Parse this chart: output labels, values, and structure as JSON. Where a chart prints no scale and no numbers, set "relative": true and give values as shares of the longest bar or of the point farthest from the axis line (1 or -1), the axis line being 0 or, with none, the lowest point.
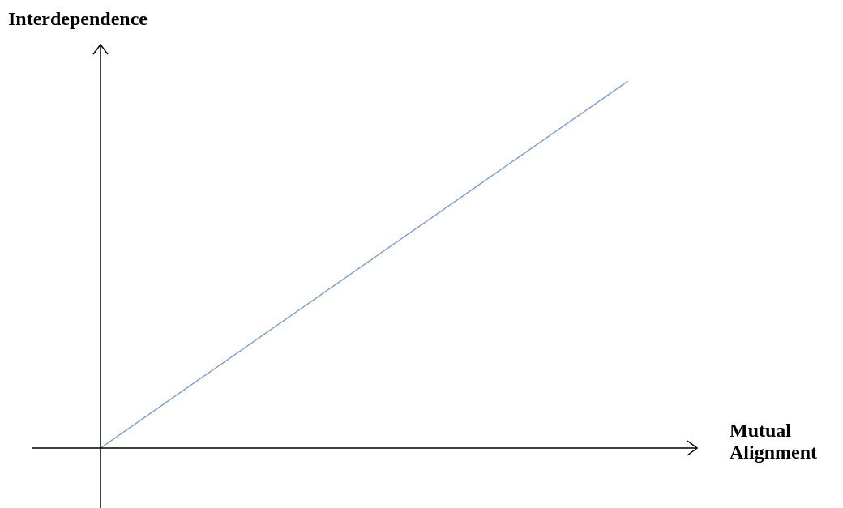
{
  "chart_data": {
    "type": "line",
    "xlabel": "Mutual Alignment",
    "ylabel": "Interdependence",
    "relative": true,
    "categories": [
      null,
      null
    ],
    "series": [
      {
        "color": "#7f9fd3",
        "values": [
          0,
          1
        ]
      }
    ],
    "marker": "none",
    "legend": false
  }
}
